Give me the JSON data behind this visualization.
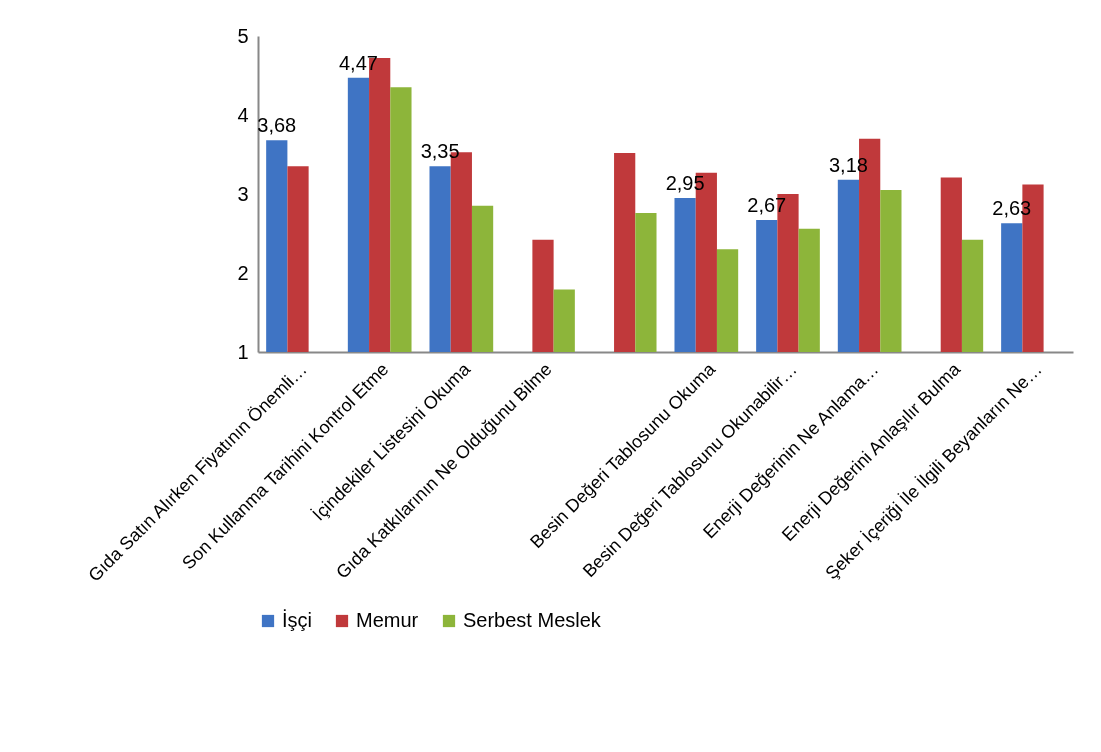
{
  "chart_data": {
    "type": "bar",
    "categories": [
      "Gıda Satın Alırken Fiyatının Önemli…",
      "Son Kullanma Tarihini Kontrol Etme",
      "İçindekiler Listesini Okuma",
      "Gıda Katkılarının Ne Olduğunu Bilme",
      null,
      "Besin Değeri Tablosunu Okuma",
      "Besin Değeri Tablosunu Okunabilir…",
      "Enerji Değerinin Ne Anlama…",
      "Enerji Değerini Anlaşılır Bulma",
      "Şeker İçeriği İle İlgili Beyanların Ne…"
    ],
    "series": [
      {
        "name": "İşçi",
        "color": "#3f74c4",
        "values": [
          3.68,
          4.47,
          3.35,
          null,
          null,
          2.95,
          2.67,
          3.18,
          null,
          2.63
        ],
        "value_labels": [
          "3,68",
          "4,47",
          "3,35",
          null,
          null,
          "2,95",
          "2,67",
          "3,18",
          null,
          "2,63"
        ]
      },
      {
        "name": "Memur",
        "color": "#c0393b",
        "values": [
          3.35,
          4.72,
          3.53,
          2.42,
          3.52,
          3.27,
          3.0,
          3.7,
          3.21,
          3.12
        ]
      },
      {
        "name": "Serbest Meslek",
        "color": "#8db53a",
        "values": [
          null,
          4.35,
          2.85,
          1.79,
          2.76,
          2.3,
          2.56,
          3.05,
          2.42,
          null
        ]
      }
    ],
    "ylim": [
      1,
      5
    ],
    "yticks": [
      1,
      2,
      3,
      4,
      5
    ],
    "legend": "bottom"
  }
}
